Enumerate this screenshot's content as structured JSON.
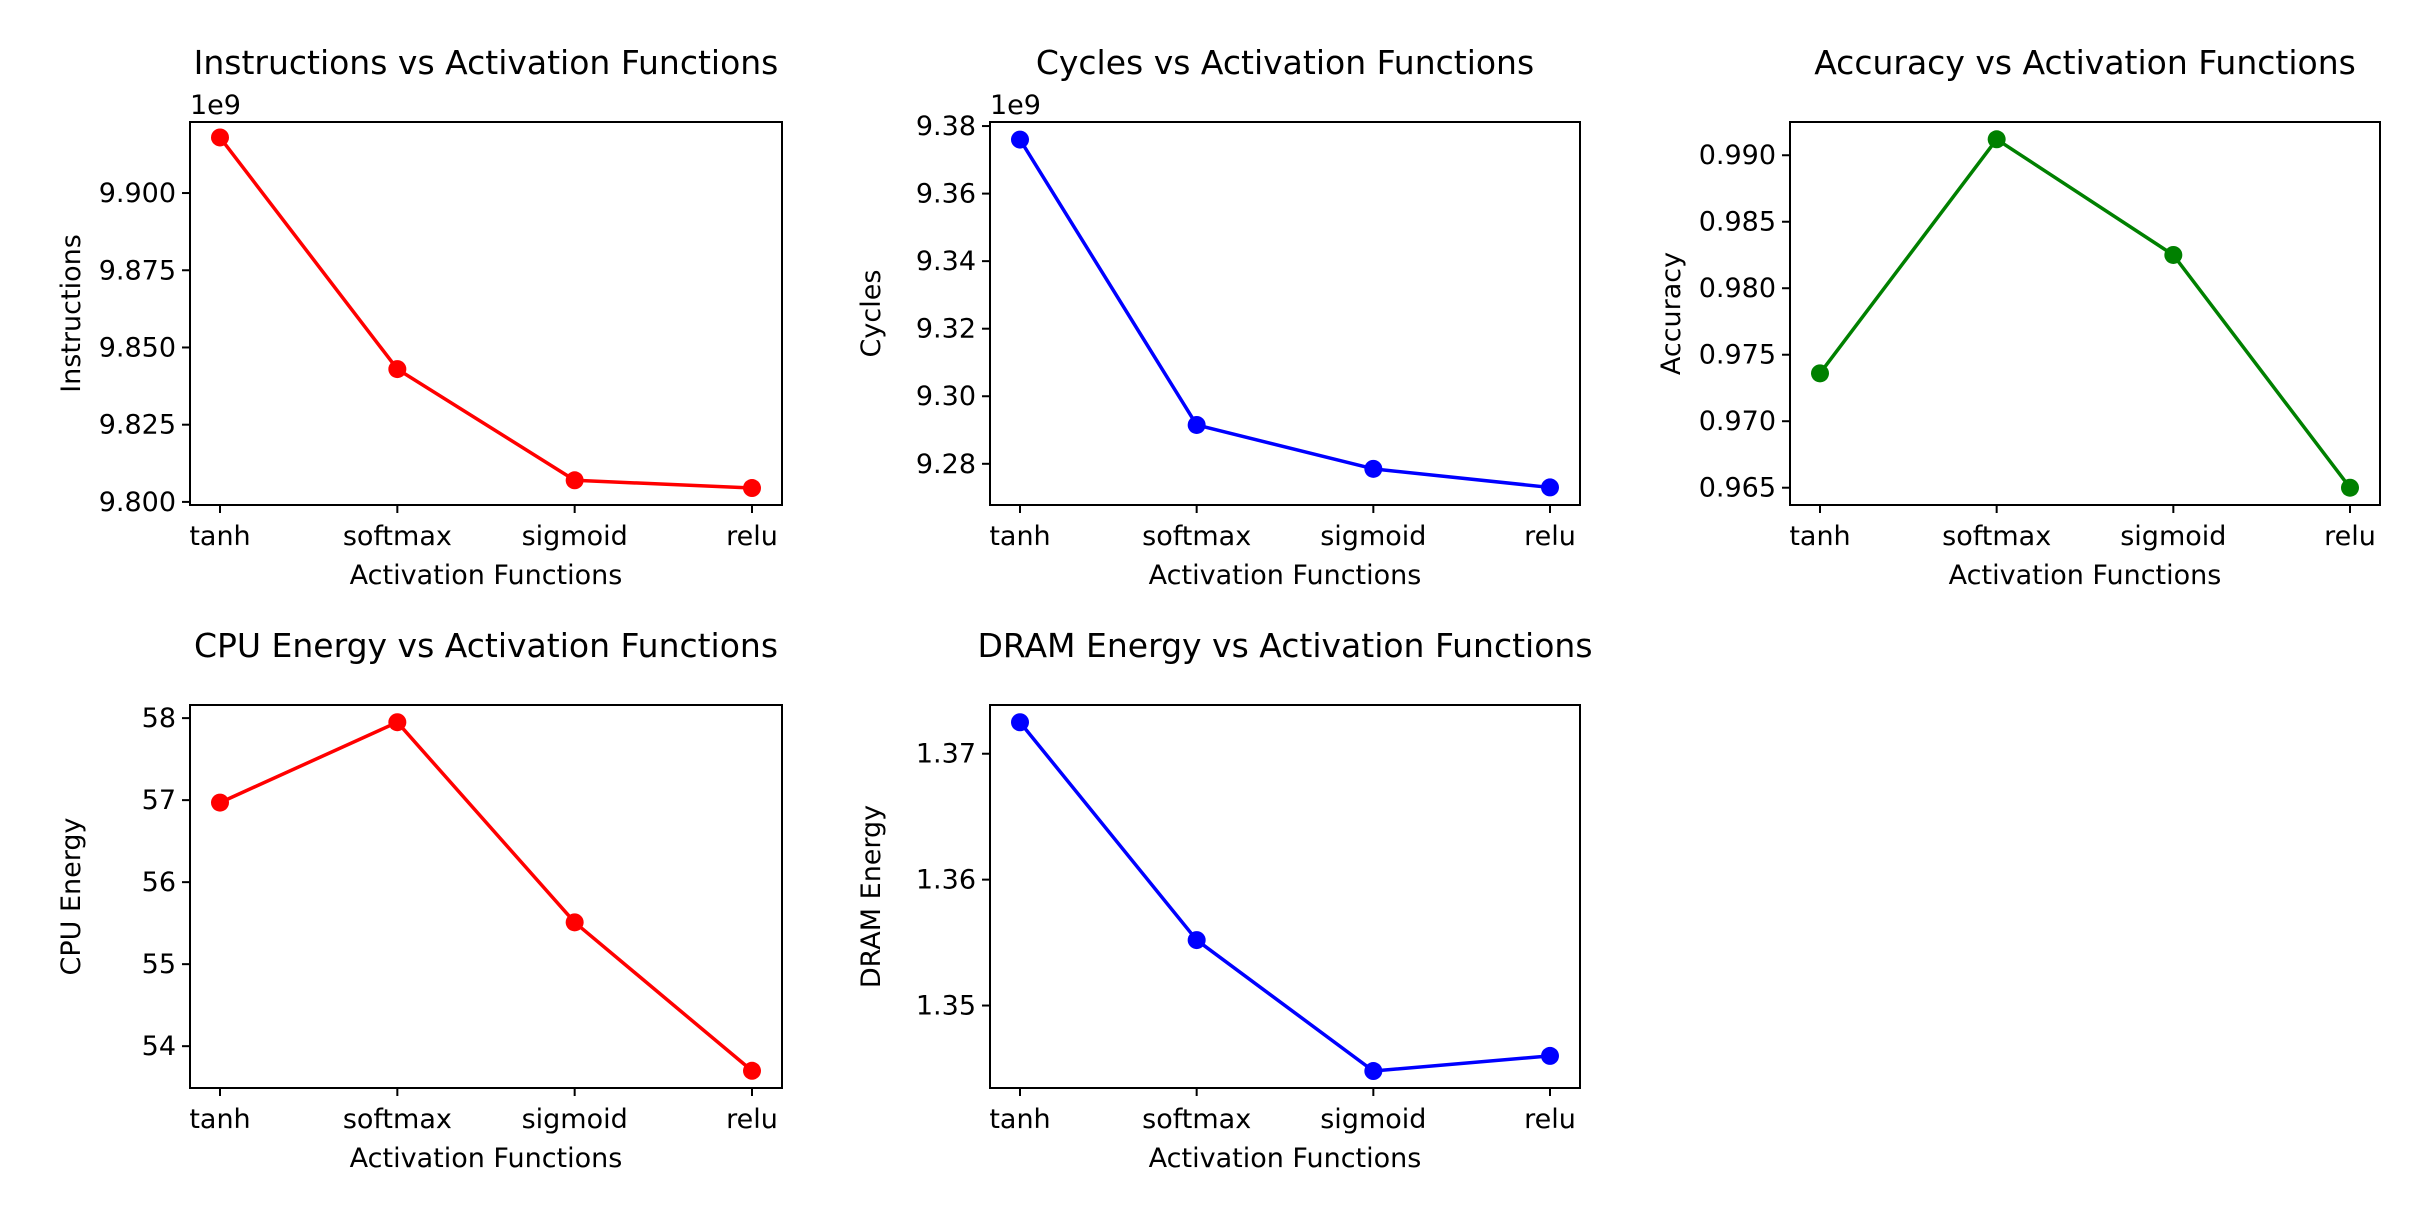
{
  "chart_data": [
    {
      "type": "line",
      "title": "Instructions vs Activation Functions",
      "xlabel": "Activation Functions",
      "ylabel": "Instructions",
      "offset_text": "1e9",
      "categories": [
        "tanh",
        "softmax",
        "sigmoid",
        "relu"
      ],
      "series": [
        {
          "name": "Instructions",
          "values": [
            9.918,
            9.843,
            9.807,
            9.8045
          ]
        }
      ],
      "color": "#ff0000",
      "ylim": [
        9.799,
        9.923
      ],
      "yticks": [
        9.8,
        9.825,
        9.85,
        9.875,
        9.9
      ],
      "ytick_labels": [
        "9.800",
        "9.825",
        "9.850",
        "9.875",
        "9.900"
      ],
      "grid": false
    },
    {
      "type": "line",
      "title": "Cycles vs Activation Functions",
      "xlabel": "Activation Functions",
      "ylabel": "Cycles",
      "offset_text": "1e9",
      "categories": [
        "tanh",
        "softmax",
        "sigmoid",
        "relu"
      ],
      "series": [
        {
          "name": "Cycles",
          "values": [
            9.376,
            9.2915,
            9.2785,
            9.273
          ]
        }
      ],
      "color": "#0000ff",
      "ylim": [
        9.2678,
        9.3812
      ],
      "yticks": [
        9.28,
        9.3,
        9.32,
        9.34,
        9.36,
        9.38
      ],
      "ytick_labels": [
        "9.28",
        "9.30",
        "9.32",
        "9.34",
        "9.36",
        "9.38"
      ],
      "grid": false
    },
    {
      "type": "line",
      "title": "Accuracy vs Activation Functions",
      "xlabel": "Activation Functions",
      "ylabel": "Accuracy",
      "offset_text": "",
      "categories": [
        "tanh",
        "softmax",
        "sigmoid",
        "relu"
      ],
      "series": [
        {
          "name": "Accuracy",
          "values": [
            0.9736,
            0.9912,
            0.9825,
            0.965
          ]
        }
      ],
      "color": "#008000",
      "ylim": [
        0.9637,
        0.9925
      ],
      "yticks": [
        0.965,
        0.97,
        0.975,
        0.98,
        0.985,
        0.99
      ],
      "ytick_labels": [
        "0.965",
        "0.970",
        "0.975",
        "0.980",
        "0.985",
        "0.990"
      ],
      "grid": false
    },
    {
      "type": "line",
      "title": "CPU Energy vs Activation Functions",
      "xlabel": "Activation Functions",
      "ylabel": "CPU Energy",
      "offset_text": "",
      "categories": [
        "tanh",
        "softmax",
        "sigmoid",
        "relu"
      ],
      "series": [
        {
          "name": "CPU Energy",
          "values": [
            56.97,
            57.95,
            55.51,
            53.7
          ]
        }
      ],
      "color": "#ff0000",
      "ylim": [
        53.49,
        58.16
      ],
      "yticks": [
        54,
        55,
        56,
        57,
        58
      ],
      "ytick_labels": [
        "54",
        "55",
        "56",
        "57",
        "58"
      ],
      "grid": false
    },
    {
      "type": "line",
      "title": "DRAM Energy vs Activation Functions",
      "xlabel": "Activation Functions",
      "ylabel": "DRAM Energy",
      "offset_text": "",
      "categories": [
        "tanh",
        "softmax",
        "sigmoid",
        "relu"
      ],
      "series": [
        {
          "name": "DRAM Energy",
          "values": [
            1.3725,
            1.3552,
            1.3448,
            1.346
          ]
        }
      ],
      "color": "#0000ff",
      "ylim": [
        1.34345,
        1.37387
      ],
      "yticks": [
        1.35,
        1.36,
        1.37
      ],
      "ytick_labels": [
        "1.35",
        "1.36",
        "1.37"
      ],
      "grid": false
    }
  ]
}
